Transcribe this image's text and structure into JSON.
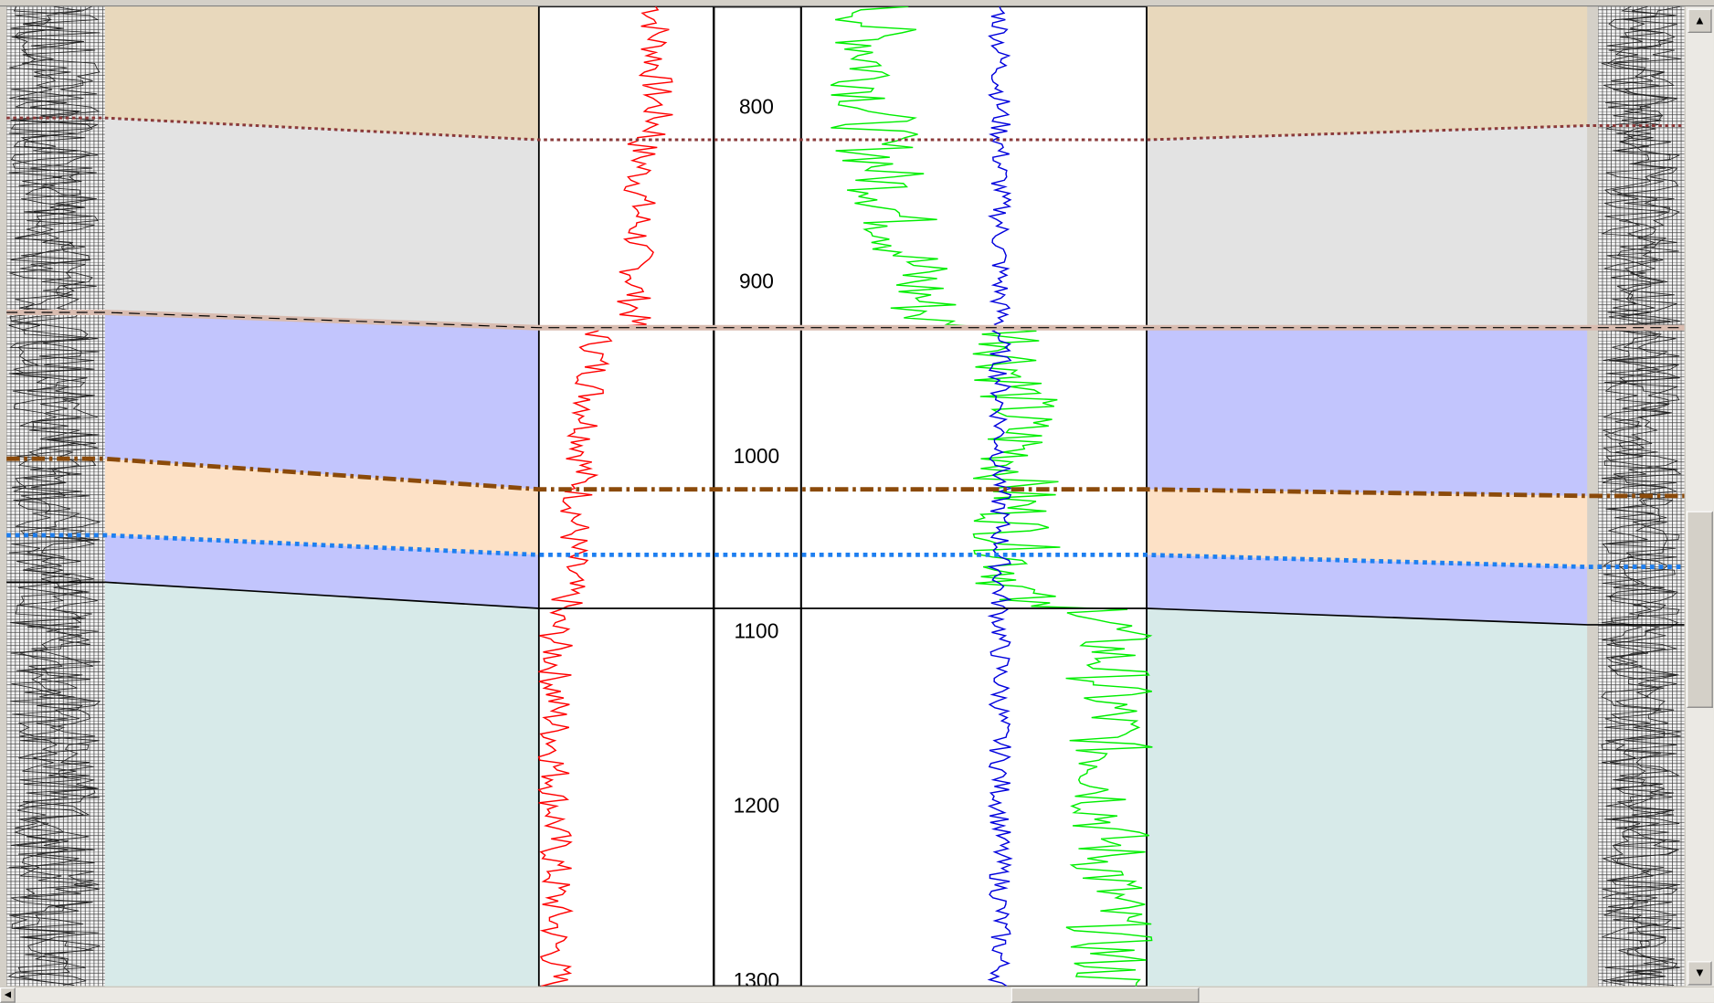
{
  "depth_track": {
    "ticks": [
      800,
      900,
      1000,
      1100,
      1200,
      1300
    ],
    "labels": [
      "800",
      "900",
      "1000",
      "1100",
      "1200",
      "1300"
    ]
  },
  "colors": {
    "zone_top": "#e8d8bc",
    "zone_grey": "#e3e3e3",
    "zone_lavender": "#c2c5fd",
    "zone_peach": "#fde1c6",
    "zone_teal": "#d7eae9",
    "curve_red": "#ff0000",
    "curve_green": "#00ee00",
    "curve_blue": "#0000dd",
    "pick_dotted_maroon": "#8b3a3a",
    "pick_tan": "#d9bcb0",
    "pick_dashdot_brown": "#8b4a0a",
    "pick_dotted_blue": "#1e7ff0"
  },
  "scrollbars": {
    "up_icon": "arrow-up-icon",
    "down_icon": "arrow-down-icon",
    "left_icon": "arrow-left-icon"
  }
}
